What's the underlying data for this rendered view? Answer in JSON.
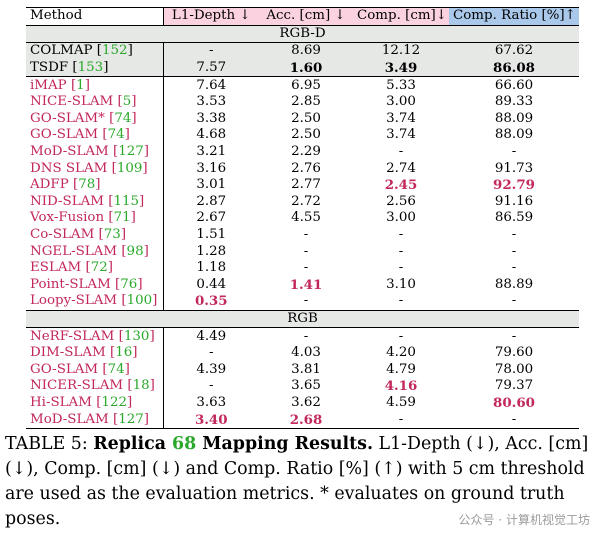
{
  "header": {
    "method": "Method",
    "l1": "L1-Depth ↓",
    "acc": "Acc. [cm] ↓",
    "comp": "Comp. [cm]↓",
    "ratio": "Comp. Ratio [%]↑"
  },
  "sections": {
    "rgbd": "RGB-D",
    "rgb": "RGB"
  },
  "rows_rgbd_shaded": [
    {
      "name": "COLMAP",
      "ref": "152",
      "l1": "-",
      "acc": "8.69",
      "comp": "12.12",
      "ratio": "67.62"
    },
    {
      "name": "TSDF",
      "ref": "153",
      "l1": "7.57",
      "acc": "1.60",
      "comp": "3.49",
      "ratio": "86.08"
    }
  ],
  "rows_rgbd": [
    {
      "name": "iMAP",
      "ref": "1",
      "l1": "7.64",
      "acc": "6.95",
      "comp": "5.33",
      "ratio": "66.60"
    },
    {
      "name": "NICE-SLAM",
      "ref": "5",
      "l1": "3.53",
      "acc": "2.85",
      "comp": "3.00",
      "ratio": "89.33"
    },
    {
      "name": "GO-SLAM*",
      "ref": "74",
      "l1": "3.38",
      "acc": "2.50",
      "comp": "3.74",
      "ratio": "88.09"
    },
    {
      "name": "GO-SLAM",
      "ref": "74",
      "l1": "4.68",
      "acc": "2.50",
      "comp": "3.74",
      "ratio": "88.09"
    },
    {
      "name": "MoD-SLAM",
      "ref": "127",
      "l1": "3.21",
      "acc": "2.29",
      "comp": "-",
      "ratio": "-"
    },
    {
      "name": "DNS SLAM",
      "ref": "109",
      "l1": "3.16",
      "acc": "2.76",
      "comp": "2.74",
      "ratio": "91.73"
    },
    {
      "name": "ADFP",
      "ref": "78",
      "l1": "3.01",
      "acc": "2.77",
      "comp": "2.45",
      "ratio": "92.79"
    },
    {
      "name": "NID-SLAM",
      "ref": "115",
      "l1": "2.87",
      "acc": "2.72",
      "comp": "2.56",
      "ratio": "91.16"
    },
    {
      "name": "Vox-Fusion",
      "ref": "71",
      "l1": "2.67",
      "acc": "4.55",
      "comp": "3.00",
      "ratio": "86.59"
    },
    {
      "name": "Co-SLAM",
      "ref": "73",
      "l1": "1.51",
      "acc": "-",
      "comp": "-",
      "ratio": "-"
    },
    {
      "name": "NGEL-SLAM",
      "ref": "98",
      "l1": "1.28",
      "acc": "-",
      "comp": "-",
      "ratio": "-"
    },
    {
      "name": "ESLAM",
      "ref": "72",
      "l1": "1.18",
      "acc": "-",
      "comp": "-",
      "ratio": "-"
    },
    {
      "name": "Point-SLAM",
      "ref": "76",
      "l1": "0.44",
      "acc": "1.41",
      "comp": "3.10",
      "ratio": "88.89"
    },
    {
      "name": "Loopy-SLAM",
      "ref": "100",
      "l1": "0.35",
      "acc": "-",
      "comp": "-",
      "ratio": "-"
    }
  ],
  "rows_rgb": [
    {
      "name": "NeRF-SLAM",
      "ref": "130",
      "l1": "4.49",
      "acc": "-",
      "comp": "-",
      "ratio": "-"
    },
    {
      "name": "DIM-SLAM",
      "ref": "16",
      "l1": "-",
      "acc": "4.03",
      "comp": "4.20",
      "ratio": "79.60"
    },
    {
      "name": "GO-SLAM",
      "ref": "74",
      "l1": "4.39",
      "acc": "3.81",
      "comp": "4.79",
      "ratio": "78.00"
    },
    {
      "name": "NICER-SLAM",
      "ref": "18",
      "l1": "-",
      "acc": "3.65",
      "comp": "4.16",
      "ratio": "79.37"
    },
    {
      "name": "Hi-SLAM",
      "ref": "122",
      "l1": "3.63",
      "acc": "3.62",
      "comp": "4.59",
      "ratio": "80.60"
    },
    {
      "name": "MoD-SLAM",
      "ref": "127",
      "l1": "3.40",
      "acc": "2.68",
      "comp": "-",
      "ratio": "-"
    }
  ],
  "caption": {
    "label": "TABLE 5: ",
    "title_a": "Replica ",
    "title_ref": "68",
    "title_b": " Mapping Results.",
    "body": " L1-Depth (↓), Acc. [cm] (↓), Comp. [cm] (↓) and Comp. Ratio [%] (↑) with 5 cm threshold are used as the evaluation metrics. * evaluates on ground truth poses."
  },
  "watermark": "公众号 · 计算机视觉工坊",
  "colors": {
    "header_pink": "#fbd3e0",
    "header_blue": "#a9c8ea",
    "best_crimson": "#c2285a",
    "method_crimson": "#c2285a",
    "ref_green": "#2aa82a",
    "section_gray": "#e6e8e6"
  }
}
